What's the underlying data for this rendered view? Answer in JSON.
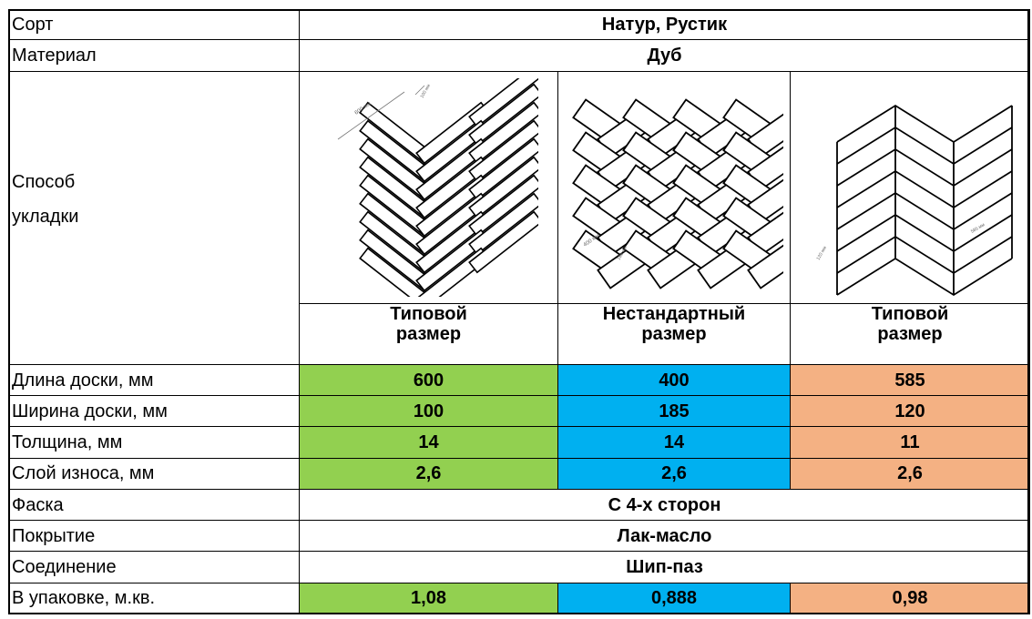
{
  "colors": {
    "green": "#92d050",
    "blue": "#00b0f0",
    "salmon": "#f4b183"
  },
  "rows": {
    "sort": {
      "label": "Сорт",
      "value": "Натур, Рустик"
    },
    "material": {
      "label": "Материал",
      "value": "Дуб"
    },
    "laying": {
      "label": "Способ укладки"
    },
    "length": {
      "label": "Длина доски, мм",
      "values": [
        "600",
        "400",
        "585"
      ]
    },
    "width": {
      "label": "Ширина доски, мм",
      "values": [
        "100",
        "185",
        "120"
      ]
    },
    "thickness": {
      "label": "Толщина, мм",
      "values": [
        "14",
        "14",
        "11"
      ]
    },
    "wear": {
      "label": "Слой износа, мм",
      "values": [
        "2,6",
        "2,6",
        "2,6"
      ]
    },
    "chamfer": {
      "label": "Фаска",
      "value": "С 4-х сторон"
    },
    "coating": {
      "label": "Покрытие",
      "value": "Лак-масло"
    },
    "joint": {
      "label": "Соединение",
      "value": "Шип-паз"
    },
    "pack": {
      "label": "В упаковке, м.кв.",
      "values": [
        "1,08",
        "0,888",
        "0,98"
      ]
    }
  },
  "patterns": [
    {
      "icon": "herringbone-pattern-icon",
      "size_line1": "Типовой",
      "size_line2": "размер",
      "dim_a": "600 мм",
      "dim_b": "100 мм"
    },
    {
      "icon": "wide-herringbone-pattern-icon",
      "size_line1": "Нестандартный",
      "size_line2": "размер",
      "dim_a": "400 мм",
      "dim_b": "185 мм"
    },
    {
      "icon": "chevron-pattern-icon",
      "size_line1": "Типовой",
      "size_line2": "размер",
      "dim_a": "585 мм",
      "dim_b": "120 мм"
    }
  ]
}
